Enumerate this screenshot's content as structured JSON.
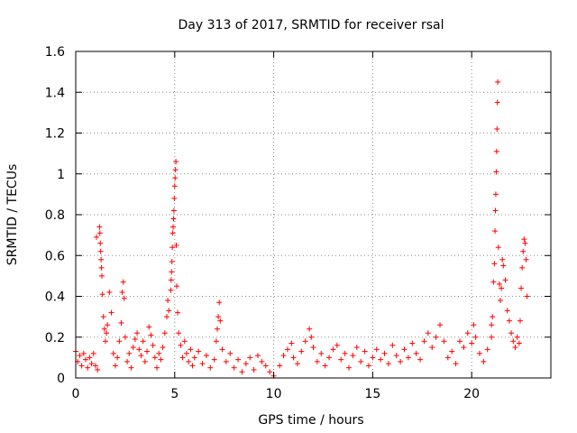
{
  "chart_data": {
    "type": "scatter",
    "title": "Day 313 of 2017, SRMTID for receiver rsal",
    "xlabel": "GPS time / hours",
    "ylabel": "SRMTID / TECUs",
    "xlim": [
      0,
      24
    ],
    "ylim": [
      0,
      1.6
    ],
    "xticks": [
      0,
      5,
      10,
      15,
      20
    ],
    "xtick_labels": [
      "0",
      "5",
      "10",
      "15",
      "20"
    ],
    "yticks": [
      0,
      0.2,
      0.4,
      0.6,
      0.8,
      1,
      1.2,
      1.4,
      1.6
    ],
    "ytick_labels": [
      "0",
      "0.2",
      "0.4",
      "0.6",
      "0.8",
      "1",
      "1.2",
      "1.4",
      "1.6"
    ],
    "grid": true,
    "marker": "+",
    "marker_color": "#ff0000",
    "series": [
      {
        "name": "SRMTID",
        "points": [
          [
            0.0,
            0.13
          ],
          [
            0.1,
            0.08
          ],
          [
            0.2,
            0.11
          ],
          [
            0.3,
            0.06
          ],
          [
            0.4,
            0.12
          ],
          [
            0.5,
            0.09
          ],
          [
            0.6,
            0.05
          ],
          [
            0.7,
            0.1
          ],
          [
            0.8,
            0.07
          ],
          [
            0.9,
            0.12
          ],
          [
            1.0,
            0.06
          ],
          [
            1.05,
            0.69
          ],
          [
            1.1,
            0.04
          ],
          [
            1.2,
            0.74
          ],
          [
            1.22,
            0.71
          ],
          [
            1.24,
            0.66
          ],
          [
            1.26,
            0.62
          ],
          [
            1.28,
            0.58
          ],
          [
            1.3,
            0.54
          ],
          [
            1.32,
            0.5
          ],
          [
            1.35,
            0.41
          ],
          [
            1.4,
            0.3
          ],
          [
            1.45,
            0.24
          ],
          [
            1.5,
            0.18
          ],
          [
            1.55,
            0.22
          ],
          [
            1.6,
            0.26
          ],
          [
            1.7,
            0.42
          ],
          [
            1.8,
            0.32
          ],
          [
            1.9,
            0.12
          ],
          [
            2.0,
            0.06
          ],
          [
            2.1,
            0.1
          ],
          [
            2.2,
            0.18
          ],
          [
            2.3,
            0.27
          ],
          [
            2.35,
            0.42
          ],
          [
            2.4,
            0.47
          ],
          [
            2.45,
            0.39
          ],
          [
            2.5,
            0.2
          ],
          [
            2.6,
            0.08
          ],
          [
            2.7,
            0.12
          ],
          [
            2.8,
            0.05
          ],
          [
            2.9,
            0.15
          ],
          [
            3.0,
            0.19
          ],
          [
            3.1,
            0.22
          ],
          [
            3.2,
            0.14
          ],
          [
            3.3,
            0.11
          ],
          [
            3.4,
            0.18
          ],
          [
            3.5,
            0.08
          ],
          [
            3.6,
            0.13
          ],
          [
            3.7,
            0.25
          ],
          [
            3.8,
            0.21
          ],
          [
            3.9,
            0.16
          ],
          [
            4.0,
            0.1
          ],
          [
            4.1,
            0.05
          ],
          [
            4.2,
            0.12
          ],
          [
            4.3,
            0.09
          ],
          [
            4.4,
            0.15
          ],
          [
            4.5,
            0.22
          ],
          [
            4.6,
            0.3
          ],
          [
            4.65,
            0.38
          ],
          [
            4.7,
            0.33
          ],
          [
            4.8,
            0.43
          ],
          [
            4.82,
            0.48
          ],
          [
            4.84,
            0.52
          ],
          [
            4.86,
            0.57
          ],
          [
            4.88,
            0.64
          ],
          [
            4.9,
            0.71
          ],
          [
            4.92,
            0.74
          ],
          [
            4.94,
            0.78
          ],
          [
            4.96,
            0.82
          ],
          [
            4.98,
            0.88
          ],
          [
            5.0,
            0.94
          ],
          [
            5.02,
            0.98
          ],
          [
            5.04,
            1.02
          ],
          [
            5.06,
            1.06
          ],
          [
            5.08,
            0.65
          ],
          [
            5.1,
            0.45
          ],
          [
            5.15,
            0.32
          ],
          [
            5.2,
            0.22
          ],
          [
            5.3,
            0.16
          ],
          [
            5.4,
            0.1
          ],
          [
            5.5,
            0.18
          ],
          [
            5.6,
            0.12
          ],
          [
            5.7,
            0.08
          ],
          [
            5.8,
            0.14
          ],
          [
            5.9,
            0.06
          ],
          [
            6.0,
            0.1
          ],
          [
            6.2,
            0.13
          ],
          [
            6.4,
            0.07
          ],
          [
            6.6,
            0.11
          ],
          [
            6.8,
            0.05
          ],
          [
            7.0,
            0.09
          ],
          [
            7.1,
            0.18
          ],
          [
            7.15,
            0.24
          ],
          [
            7.2,
            0.3
          ],
          [
            7.25,
            0.37
          ],
          [
            7.3,
            0.28
          ],
          [
            7.4,
            0.14
          ],
          [
            7.6,
            0.08
          ],
          [
            7.8,
            0.12
          ],
          [
            8.0,
            0.05
          ],
          [
            8.2,
            0.09
          ],
          [
            8.4,
            0.03
          ],
          [
            8.6,
            0.07
          ],
          [
            8.8,
            0.1
          ],
          [
            9.0,
            0.04
          ],
          [
            9.2,
            0.11
          ],
          [
            9.4,
            0.08
          ],
          [
            9.6,
            0.06
          ],
          [
            9.8,
            0.03
          ],
          [
            10.0,
            0.01
          ],
          [
            10.3,
            0.06
          ],
          [
            10.5,
            0.11
          ],
          [
            10.7,
            0.14
          ],
          [
            10.9,
            0.17
          ],
          [
            11.0,
            0.1
          ],
          [
            11.2,
            0.07
          ],
          [
            11.4,
            0.13
          ],
          [
            11.6,
            0.18
          ],
          [
            11.8,
            0.24
          ],
          [
            11.9,
            0.2
          ],
          [
            12.0,
            0.15
          ],
          [
            12.2,
            0.08
          ],
          [
            12.4,
            0.12
          ],
          [
            12.6,
            0.06
          ],
          [
            12.8,
            0.1
          ],
          [
            13.0,
            0.14
          ],
          [
            13.2,
            0.16
          ],
          [
            13.4,
            0.09
          ],
          [
            13.6,
            0.12
          ],
          [
            13.8,
            0.05
          ],
          [
            14.0,
            0.11
          ],
          [
            14.2,
            0.15
          ],
          [
            14.4,
            0.08
          ],
          [
            14.6,
            0.13
          ],
          [
            14.8,
            0.06
          ],
          [
            15.0,
            0.1
          ],
          [
            15.2,
            0.14
          ],
          [
            15.4,
            0.09
          ],
          [
            15.6,
            0.12
          ],
          [
            15.8,
            0.07
          ],
          [
            16.0,
            0.16
          ],
          [
            16.2,
            0.11
          ],
          [
            16.4,
            0.08
          ],
          [
            16.6,
            0.14
          ],
          [
            16.8,
            0.1
          ],
          [
            17.0,
            0.17
          ],
          [
            17.2,
            0.12
          ],
          [
            17.4,
            0.09
          ],
          [
            17.6,
            0.18
          ],
          [
            17.8,
            0.22
          ],
          [
            18.0,
            0.15
          ],
          [
            18.2,
            0.2
          ],
          [
            18.4,
            0.26
          ],
          [
            18.6,
            0.18
          ],
          [
            18.8,
            0.1
          ],
          [
            19.0,
            0.13
          ],
          [
            19.2,
            0.07
          ],
          [
            19.4,
            0.18
          ],
          [
            19.6,
            0.15
          ],
          [
            19.8,
            0.22
          ],
          [
            20.0,
            0.17
          ],
          [
            20.1,
            0.26
          ],
          [
            20.2,
            0.2
          ],
          [
            20.4,
            0.12
          ],
          [
            20.6,
            0.08
          ],
          [
            20.8,
            0.14
          ],
          [
            21.0,
            0.2
          ],
          [
            21.0,
            0.26
          ],
          [
            21.05,
            0.3
          ],
          [
            21.1,
            0.47
          ],
          [
            21.15,
            0.56
          ],
          [
            21.18,
            0.72
          ],
          [
            21.2,
            0.82
          ],
          [
            21.22,
            0.9
          ],
          [
            21.24,
            1.01
          ],
          [
            21.26,
            1.11
          ],
          [
            21.28,
            1.22
          ],
          [
            21.3,
            1.35
          ],
          [
            21.32,
            1.45
          ],
          [
            21.35,
            0.64
          ],
          [
            21.4,
            0.46
          ],
          [
            21.45,
            0.38
          ],
          [
            21.5,
            0.44
          ],
          [
            21.55,
            0.58
          ],
          [
            21.6,
            0.55
          ],
          [
            21.7,
            0.48
          ],
          [
            21.8,
            0.33
          ],
          [
            21.9,
            0.28
          ],
          [
            22.0,
            0.22
          ],
          [
            22.1,
            0.18
          ],
          [
            22.2,
            0.15
          ],
          [
            22.3,
            0.2
          ],
          [
            22.4,
            0.17
          ],
          [
            22.45,
            0.28
          ],
          [
            22.5,
            0.44
          ],
          [
            22.55,
            0.54
          ],
          [
            22.6,
            0.62
          ],
          [
            22.65,
            0.68
          ],
          [
            22.7,
            0.66
          ],
          [
            22.75,
            0.58
          ],
          [
            22.8,
            0.4
          ]
        ]
      }
    ]
  }
}
